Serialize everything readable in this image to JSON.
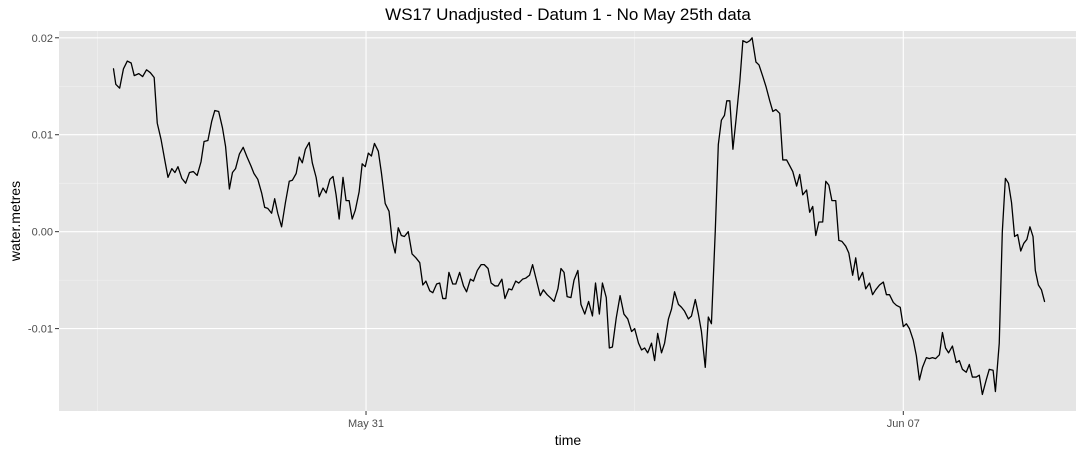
{
  "chart_data": {
    "type": "line",
    "title": "WS17 Unadjusted - Datum 1 - No May 25th data",
    "xlabel": "time",
    "ylabel": "water.metres",
    "x_ticks": [
      {
        "label": "May 31",
        "value": 0
      },
      {
        "label": "Jun 07",
        "value": 7
      }
    ],
    "y_ticks": [
      {
        "label": "0.02",
        "value": 0.02
      },
      {
        "label": "0.01",
        "value": 0.01
      },
      {
        "label": "0.00",
        "value": 0.0
      },
      {
        "label": "-0.01",
        "value": -0.01
      }
    ],
    "x_note": "x values are days relative to May 31",
    "xlim": [
      -4.0,
      9.25
    ],
    "ylim": [
      -0.0185,
      0.0207
    ],
    "grid": true,
    "background": "#E5E5E5",
    "line_color": "#000000",
    "series": [
      {
        "values": [
          [
            -3.29,
            0.0168
          ],
          [
            -3.26,
            0.0152
          ],
          [
            -3.21,
            0.0148
          ],
          [
            -3.16,
            0.0168
          ],
          [
            -3.11,
            0.0176
          ],
          [
            -3.06,
            0.0174
          ],
          [
            -3.02,
            0.0161
          ],
          [
            -2.96,
            0.0163
          ],
          [
            -2.91,
            0.016
          ],
          [
            -2.86,
            0.0167
          ],
          [
            -2.81,
            0.0164
          ],
          [
            -2.76,
            0.0159
          ],
          [
            -2.72,
            0.0112
          ],
          [
            -2.67,
            0.0095
          ],
          [
            -2.62,
            0.0073
          ],
          [
            -2.58,
            0.0056
          ],
          [
            -2.53,
            0.0065
          ],
          [
            -2.49,
            0.0061
          ],
          [
            -2.45,
            0.0067
          ],
          [
            -2.4,
            0.0055
          ],
          [
            -2.35,
            0.005
          ],
          [
            -2.3,
            0.0061
          ],
          [
            -2.25,
            0.0062
          ],
          [
            -2.2,
            0.0058
          ],
          [
            -2.15,
            0.0072
          ],
          [
            -2.11,
            0.0093
          ],
          [
            -2.06,
            0.0094
          ],
          [
            -2.01,
            0.0114
          ],
          [
            -1.97,
            0.0125
          ],
          [
            -1.92,
            0.0124
          ],
          [
            -1.87,
            0.0107
          ],
          [
            -1.83,
            0.0088
          ],
          [
            -1.78,
            0.0044
          ],
          [
            -1.74,
            0.0061
          ],
          [
            -1.7,
            0.0065
          ],
          [
            -1.65,
            0.008
          ],
          [
            -1.6,
            0.0087
          ],
          [
            -1.55,
            0.0077
          ],
          [
            -1.5,
            0.0068
          ],
          [
            -1.46,
            0.006
          ],
          [
            -1.41,
            0.0054
          ],
          [
            -1.36,
            0.004
          ],
          [
            -1.32,
            0.0025
          ],
          [
            -1.28,
            0.0024
          ],
          [
            -1.23,
            0.0019
          ],
          [
            -1.19,
            0.0034
          ],
          [
            -1.15,
            0.0019
          ],
          [
            -1.1,
            0.0005
          ],
          [
            -1.05,
            0.003
          ],
          [
            -1.0,
            0.0052
          ],
          [
            -0.96,
            0.0053
          ],
          [
            -0.91,
            0.006
          ],
          [
            -0.87,
            0.0077
          ],
          [
            -0.83,
            0.0071
          ],
          [
            -0.79,
            0.0085
          ],
          [
            -0.74,
            0.0092
          ],
          [
            -0.7,
            0.0071
          ],
          [
            -0.65,
            0.0056
          ],
          [
            -0.61,
            0.0036
          ],
          [
            -0.56,
            0.0045
          ],
          [
            -0.52,
            0.004
          ],
          [
            -0.47,
            0.0054
          ],
          [
            -0.43,
            0.0057
          ],
          [
            -0.39,
            0.0038
          ],
          [
            -0.35,
            0.0013
          ],
          [
            -0.3,
            0.0056
          ],
          [
            -0.26,
            0.0032
          ],
          [
            -0.22,
            0.0032
          ],
          [
            -0.18,
            0.0013
          ],
          [
            -0.14,
            0.0022
          ],
          [
            -0.09,
            0.0041
          ],
          [
            -0.05,
            0.007
          ],
          [
            -0.01,
            0.0067
          ],
          [
            0.03,
            0.0081
          ],
          [
            0.07,
            0.0078
          ],
          [
            0.11,
            0.0091
          ],
          [
            0.16,
            0.0083
          ],
          [
            0.2,
            0.0061
          ],
          [
            0.25,
            0.0029
          ],
          [
            0.3,
            0.0021
          ],
          [
            0.34,
            -0.0009
          ],
          [
            0.38,
            -0.0022
          ],
          [
            0.42,
            0.0004
          ],
          [
            0.46,
            -0.0004
          ],
          [
            0.5,
            -0.0005
          ],
          [
            0.55,
            0.0
          ],
          [
            0.6,
            -0.0023
          ],
          [
            0.65,
            -0.0027
          ],
          [
            0.7,
            -0.0032
          ],
          [
            0.74,
            -0.0055
          ],
          [
            0.78,
            -0.0051
          ],
          [
            0.83,
            -0.0061
          ],
          [
            0.87,
            -0.0063
          ],
          [
            0.92,
            -0.0054
          ],
          [
            0.96,
            -0.0053
          ],
          [
            1.0,
            -0.0069
          ],
          [
            1.04,
            -0.0069
          ],
          [
            1.08,
            -0.0042
          ],
          [
            1.13,
            -0.0054
          ],
          [
            1.17,
            -0.0054
          ],
          [
            1.22,
            -0.0042
          ],
          [
            1.27,
            -0.0056
          ],
          [
            1.31,
            -0.0062
          ],
          [
            1.36,
            -0.0049
          ],
          [
            1.4,
            -0.0051
          ],
          [
            1.45,
            -0.004
          ],
          [
            1.5,
            -0.0034
          ],
          [
            1.54,
            -0.0034
          ],
          [
            1.59,
            -0.0038
          ],
          [
            1.63,
            -0.0053
          ],
          [
            1.68,
            -0.0056
          ],
          [
            1.72,
            -0.0056
          ],
          [
            1.77,
            -0.0049
          ],
          [
            1.81,
            -0.0069
          ],
          [
            1.86,
            -0.0059
          ],
          [
            1.9,
            -0.006
          ],
          [
            1.95,
            -0.0051
          ],
          [
            1.99,
            -0.0053
          ],
          [
            2.04,
            -0.0049
          ],
          [
            2.08,
            -0.0048
          ],
          [
            2.13,
            -0.0045
          ],
          [
            2.17,
            -0.0034
          ],
          [
            2.22,
            -0.005
          ],
          [
            2.27,
            -0.0066
          ],
          [
            2.31,
            -0.006
          ],
          [
            2.36,
            -0.0065
          ],
          [
            2.4,
            -0.0068
          ],
          [
            2.45,
            -0.0072
          ],
          [
            2.5,
            -0.0059
          ],
          [
            2.54,
            -0.0038
          ],
          [
            2.58,
            -0.0042
          ],
          [
            2.62,
            -0.0067
          ],
          [
            2.67,
            -0.0068
          ],
          [
            2.71,
            -0.005
          ],
          [
            2.76,
            -0.004
          ],
          [
            2.8,
            -0.0075
          ],
          [
            2.85,
            -0.0085
          ],
          [
            2.9,
            -0.0072
          ],
          [
            2.95,
            -0.0087
          ],
          [
            2.99,
            -0.0053
          ],
          [
            3.04,
            -0.0085
          ],
          [
            3.08,
            -0.0053
          ],
          [
            3.13,
            -0.0068
          ],
          [
            3.17,
            -0.012
          ],
          [
            3.21,
            -0.0119
          ],
          [
            3.26,
            -0.0089
          ],
          [
            3.31,
            -0.0066
          ],
          [
            3.36,
            -0.0085
          ],
          [
            3.41,
            -0.009
          ],
          [
            3.46,
            -0.0103
          ],
          [
            3.5,
            -0.01
          ],
          [
            3.55,
            -0.0115
          ],
          [
            3.59,
            -0.0122
          ],
          [
            3.63,
            -0.012
          ],
          [
            3.67,
            -0.0125
          ],
          [
            3.72,
            -0.0115
          ],
          [
            3.76,
            -0.0133
          ],
          [
            3.8,
            -0.0105
          ],
          [
            3.85,
            -0.0125
          ],
          [
            3.89,
            -0.0115
          ],
          [
            3.94,
            -0.009
          ],
          [
            3.98,
            -0.008
          ],
          [
            4.02,
            -0.0062
          ],
          [
            4.07,
            -0.0075
          ],
          [
            4.11,
            -0.0078
          ],
          [
            4.15,
            -0.0082
          ],
          [
            4.2,
            -0.009
          ],
          [
            4.24,
            -0.0087
          ],
          [
            4.29,
            -0.007
          ],
          [
            4.33,
            -0.0085
          ],
          [
            4.37,
            -0.0103
          ],
          [
            4.42,
            -0.014
          ],
          [
            4.46,
            -0.0088
          ],
          [
            4.5,
            -0.0095
          ],
          [
            4.55,
            0.0
          ],
          [
            4.59,
            0.009
          ],
          [
            4.63,
            0.0115
          ],
          [
            4.67,
            0.012
          ],
          [
            4.7,
            0.0135
          ],
          [
            4.74,
            0.0135
          ],
          [
            4.78,
            0.0085
          ],
          [
            4.82,
            0.0115
          ],
          [
            4.87,
            0.0155
          ],
          [
            4.91,
            0.0197
          ],
          [
            4.96,
            0.0195
          ],
          [
            5.0,
            0.0197
          ],
          [
            5.03,
            0.02
          ],
          [
            5.08,
            0.0175
          ],
          [
            5.12,
            0.0172
          ],
          [
            5.17,
            0.016
          ],
          [
            5.21,
            0.015
          ],
          [
            5.26,
            0.0135
          ],
          [
            5.3,
            0.0124
          ],
          [
            5.34,
            0.0126
          ],
          [
            5.39,
            0.0122
          ],
          [
            5.43,
            0.0074
          ],
          [
            5.48,
            0.0074
          ],
          [
            5.52,
            0.0068
          ],
          [
            5.56,
            0.0062
          ],
          [
            5.61,
            0.0047
          ],
          [
            5.65,
            0.0059
          ],
          [
            5.69,
            0.0038
          ],
          [
            5.74,
            0.0043
          ],
          [
            5.78,
            0.002
          ],
          [
            5.82,
            0.0026
          ],
          [
            5.86,
            -0.0004
          ],
          [
            5.9,
            0.001
          ],
          [
            5.95,
            0.001
          ],
          [
            5.99,
            0.0052
          ],
          [
            6.03,
            0.0048
          ],
          [
            6.07,
            0.0032
          ],
          [
            6.12,
            0.0032
          ],
          [
            6.16,
            -0.0009
          ],
          [
            6.2,
            -0.001
          ],
          [
            6.25,
            -0.0015
          ],
          [
            6.29,
            -0.0022
          ],
          [
            6.34,
            -0.0045
          ],
          [
            6.38,
            -0.0027
          ],
          [
            6.42,
            -0.005
          ],
          [
            6.47,
            -0.0042
          ],
          [
            6.51,
            -0.0059
          ],
          [
            6.56,
            -0.0053
          ],
          [
            6.6,
            -0.0065
          ],
          [
            6.64,
            -0.006
          ],
          [
            6.69,
            -0.0055
          ],
          [
            6.74,
            -0.0052
          ],
          [
            6.78,
            -0.0065
          ],
          [
            6.82,
            -0.0065
          ],
          [
            6.87,
            -0.0073
          ],
          [
            6.91,
            -0.0076
          ],
          [
            6.96,
            -0.0078
          ],
          [
            7.0,
            -0.0098
          ],
          [
            7.04,
            -0.0095
          ],
          [
            7.08,
            -0.01
          ],
          [
            7.13,
            -0.0112
          ],
          [
            7.17,
            -0.0128
          ],
          [
            7.21,
            -0.0153
          ],
          [
            7.25,
            -0.014
          ],
          [
            7.3,
            -0.013
          ],
          [
            7.34,
            -0.0131
          ],
          [
            7.38,
            -0.013
          ],
          [
            7.42,
            -0.0131
          ],
          [
            7.47,
            -0.0127
          ],
          [
            7.51,
            -0.0104
          ],
          [
            7.55,
            -0.012
          ],
          [
            7.59,
            -0.0125
          ],
          [
            7.64,
            -0.0118
          ],
          [
            7.69,
            -0.0135
          ],
          [
            7.73,
            -0.0133
          ],
          [
            7.77,
            -0.0142
          ],
          [
            7.82,
            -0.0145
          ],
          [
            7.86,
            -0.0137
          ],
          [
            7.9,
            -0.015
          ],
          [
            7.95,
            -0.015
          ],
          [
            7.99,
            -0.0148
          ],
          [
            8.03,
            -0.0168
          ],
          [
            8.08,
            -0.0153
          ],
          [
            8.12,
            -0.0142
          ],
          [
            8.17,
            -0.0143
          ],
          [
            8.2,
            -0.0165
          ],
          [
            8.25,
            -0.0115
          ],
          [
            8.29,
            0.0
          ],
          [
            8.33,
            0.0055
          ],
          [
            8.37,
            0.005
          ],
          [
            8.41,
            0.003
          ],
          [
            8.45,
            -0.0005
          ],
          [
            8.49,
            -0.0003
          ],
          [
            8.53,
            -0.002
          ],
          [
            8.57,
            -0.0012
          ],
          [
            8.61,
            -0.0008
          ],
          [
            8.65,
            0.0005
          ],
          [
            8.69,
            -0.0005
          ],
          [
            8.72,
            -0.004
          ],
          [
            8.76,
            -0.0055
          ],
          [
            8.8,
            -0.006
          ],
          [
            8.84,
            -0.0072
          ]
        ]
      }
    ]
  }
}
